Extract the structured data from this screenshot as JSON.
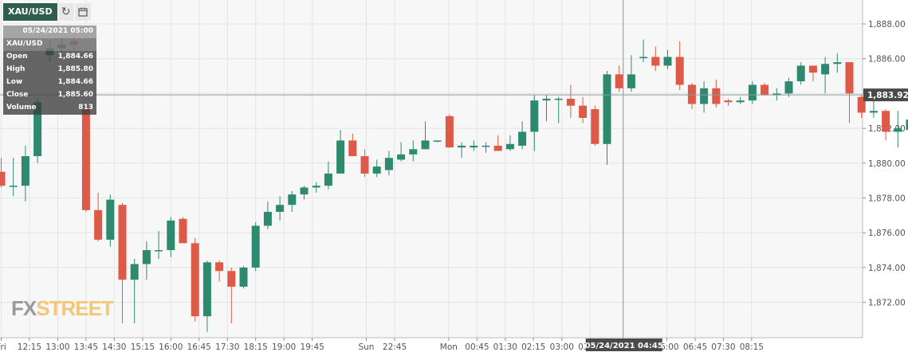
{
  "toolbar": {
    "symbol": "XAU/USD"
  },
  "info_panel": {
    "date": "05/24/2021 05:00",
    "symbol": "XAU/USD",
    "rows": [
      {
        "label": "Open",
        "value": "1,884.66"
      },
      {
        "label": "High",
        "value": "1,885.80"
      },
      {
        "label": "Low",
        "value": "1,884.66"
      },
      {
        "label": "Close",
        "value": "1,885.60"
      },
      {
        "label": "Volume",
        "value": "813"
      }
    ]
  },
  "logo": {
    "part1": "FX",
    "part2": "STREET"
  },
  "crosshair": {
    "price_label": "1,883.92",
    "time_label": "05/24/2021 04:45",
    "price": 1883.92
  },
  "colors": {
    "up": "#2e8a6e",
    "down": "#dd5a48",
    "background": "#f7f7f7",
    "grid": "#e4e4e4"
  },
  "chart_data": {
    "type": "candlestick",
    "ylim": [
      1870.2,
      1889.6
    ],
    "y_ticks": [
      "1,872.00",
      "1,874.00",
      "1,876.00",
      "1,878.00",
      "1,880.00",
      "1,882.00",
      "1,884.00",
      "1,886.00",
      "1,888.00"
    ],
    "y_tick_values": [
      1872,
      1874,
      1876,
      1878,
      1880,
      1882,
      1884,
      1886,
      1888
    ],
    "x_labels": [
      "Fri",
      "12:15",
      "13:00",
      "13:45",
      "14:30",
      "15:15",
      "16:00",
      "16:45",
      "17:30",
      "18:15",
      "19:00",
      "19:45",
      "Sun",
      "22:45",
      "Mon",
      "00:45",
      "01:30",
      "02:15",
      "03:00",
      "03:45",
      "04:45",
      "06:00",
      "06:45",
      "07:30",
      "08:15"
    ],
    "x_label_slots": [
      0,
      2.33,
      4.67,
      7.0,
      9.33,
      11.67,
      14.0,
      16.33,
      18.67,
      21.0,
      23.33,
      25.67,
      30.13,
      32.47,
      36.93,
      39.27,
      41.6,
      43.93,
      46.27,
      48.6,
      51.33,
      54.93,
      57.27,
      59.6,
      61.93
    ],
    "crosshair_slot": 51.33,
    "candles": [
      {
        "o": 1879.5,
        "h": 1880.3,
        "l": 1878.6,
        "c": 1878.7
      },
      {
        "o": 1878.7,
        "h": 1880.3,
        "l": 1878.1,
        "c": 1878.7
      },
      {
        "o": 1878.7,
        "h": 1881.0,
        "l": 1877.8,
        "c": 1880.4
      },
      {
        "o": 1880.4,
        "h": 1883.7,
        "l": 1880.0,
        "c": 1883.5
      },
      {
        "o": 1886.2,
        "h": 1887.0,
        "l": 1885.8,
        "c": 1886.6
      },
      {
        "o": 1886.6,
        "h": 1887.2,
        "l": 1886.4,
        "c": 1886.8
      },
      {
        "o": 1887.0,
        "h": 1887.4,
        "l": 1886.5,
        "c": 1886.8
      },
      {
        "o": 1883.2,
        "h": 1883.4,
        "l": 1877.2,
        "c": 1877.3
      },
      {
        "o": 1877.3,
        "h": 1878.3,
        "l": 1875.5,
        "c": 1875.6
      },
      {
        "o": 1875.6,
        "h": 1878.2,
        "l": 1875.2,
        "c": 1877.9
      },
      {
        "o": 1877.6,
        "h": 1877.7,
        "l": 1870.8,
        "c": 1873.3
      },
      {
        "o": 1873.3,
        "h": 1874.5,
        "l": 1870.8,
        "c": 1874.2
      },
      {
        "o": 1874.2,
        "h": 1875.5,
        "l": 1873.3,
        "c": 1875.0
      },
      {
        "o": 1875.0,
        "h": 1876.1,
        "l": 1874.5,
        "c": 1875.0
      },
      {
        "o": 1875.0,
        "h": 1876.9,
        "l": 1874.6,
        "c": 1876.7
      },
      {
        "o": 1876.8,
        "h": 1876.9,
        "l": 1875.4,
        "c": 1875.4
      },
      {
        "o": 1875.4,
        "h": 1875.7,
        "l": 1870.9,
        "c": 1871.2
      },
      {
        "o": 1871.2,
        "h": 1874.4,
        "l": 1870.3,
        "c": 1874.3
      },
      {
        "o": 1874.3,
        "h": 1874.4,
        "l": 1873.2,
        "c": 1873.8
      },
      {
        "o": 1873.8,
        "h": 1874.0,
        "l": 1870.8,
        "c": 1872.9
      },
      {
        "o": 1872.9,
        "h": 1874.1,
        "l": 1872.8,
        "c": 1874.0
      },
      {
        "o": 1874.0,
        "h": 1876.6,
        "l": 1873.8,
        "c": 1876.4
      },
      {
        "o": 1876.4,
        "h": 1877.8,
        "l": 1876.2,
        "c": 1877.2
      },
      {
        "o": 1877.2,
        "h": 1878.1,
        "l": 1876.7,
        "c": 1877.6
      },
      {
        "o": 1877.6,
        "h": 1878.4,
        "l": 1877.2,
        "c": 1878.2
      },
      {
        "o": 1878.2,
        "h": 1878.7,
        "l": 1877.9,
        "c": 1878.6
      },
      {
        "o": 1878.6,
        "h": 1878.9,
        "l": 1878.3,
        "c": 1878.7
      },
      {
        "o": 1878.7,
        "h": 1880.1,
        "l": 1878.5,
        "c": 1879.4
      },
      {
        "o": 1879.4,
        "h": 1881.9,
        "l": 1879.4,
        "c": 1881.3
      },
      {
        "o": 1881.3,
        "h": 1881.7,
        "l": 1880.4,
        "c": 1880.4
      },
      {
        "o": 1880.4,
        "h": 1880.8,
        "l": 1879.2,
        "c": 1879.4
      },
      {
        "o": 1879.4,
        "h": 1880.2,
        "l": 1879.2,
        "c": 1879.8
      },
      {
        "o": 1879.6,
        "h": 1880.7,
        "l": 1879.3,
        "c": 1880.3
      },
      {
        "o": 1880.2,
        "h": 1881.2,
        "l": 1880.1,
        "c": 1880.5
      },
      {
        "o": 1880.5,
        "h": 1881.3,
        "l": 1880.1,
        "c": 1880.8
      },
      {
        "o": 1880.8,
        "h": 1882.4,
        "l": 1880.8,
        "c": 1881.3
      },
      {
        "o": 1881.3,
        "h": 1881.3,
        "l": 1881.2,
        "c": 1881.3
      },
      {
        "o": 1882.7,
        "h": 1882.8,
        "l": 1880.9,
        "c": 1880.9
      },
      {
        "o": 1880.9,
        "h": 1881.2,
        "l": 1880.3,
        "c": 1881.0
      },
      {
        "o": 1880.9,
        "h": 1881.3,
        "l": 1880.7,
        "c": 1881.0
      },
      {
        "o": 1881.0,
        "h": 1881.2,
        "l": 1880.6,
        "c": 1881.0
      },
      {
        "o": 1881.0,
        "h": 1881.6,
        "l": 1880.7,
        "c": 1880.7
      },
      {
        "o": 1880.8,
        "h": 1881.6,
        "l": 1880.7,
        "c": 1881.1
      },
      {
        "o": 1881.0,
        "h": 1882.4,
        "l": 1880.8,
        "c": 1881.8
      },
      {
        "o": 1881.8,
        "h": 1883.9,
        "l": 1880.7,
        "c": 1883.6
      },
      {
        "o": 1883.6,
        "h": 1883.9,
        "l": 1882.4,
        "c": 1883.7
      },
      {
        "o": 1883.7,
        "h": 1883.8,
        "l": 1882.3,
        "c": 1883.7
      },
      {
        "o": 1883.7,
        "h": 1884.5,
        "l": 1882.6,
        "c": 1883.3
      },
      {
        "o": 1883.3,
        "h": 1883.8,
        "l": 1882.3,
        "c": 1882.6
      },
      {
        "o": 1883.1,
        "h": 1883.3,
        "l": 1881.0,
        "c": 1881.1
      },
      {
        "o": 1881.1,
        "h": 1885.3,
        "l": 1879.9,
        "c": 1885.1
      },
      {
        "o": 1885.1,
        "h": 1885.6,
        "l": 1884.1,
        "c": 1884.3
      },
      {
        "o": 1884.3,
        "h": 1886.2,
        "l": 1884.1,
        "c": 1885.1
      },
      {
        "o": 1886.1,
        "h": 1887.1,
        "l": 1885.8,
        "c": 1886.1
      },
      {
        "o": 1886.1,
        "h": 1886.7,
        "l": 1885.3,
        "c": 1885.6
      },
      {
        "o": 1885.6,
        "h": 1886.5,
        "l": 1885.4,
        "c": 1886.1
      },
      {
        "o": 1886.1,
        "h": 1887.0,
        "l": 1884.2,
        "c": 1884.5
      },
      {
        "o": 1884.5,
        "h": 1884.6,
        "l": 1883.1,
        "c": 1883.4
      },
      {
        "o": 1883.4,
        "h": 1884.7,
        "l": 1882.9,
        "c": 1884.3
      },
      {
        "o": 1884.3,
        "h": 1884.8,
        "l": 1883.2,
        "c": 1883.4
      },
      {
        "o": 1883.6,
        "h": 1883.7,
        "l": 1883.3,
        "c": 1883.5
      },
      {
        "o": 1883.5,
        "h": 1883.8,
        "l": 1883.4,
        "c": 1883.6
      },
      {
        "o": 1883.6,
        "h": 1884.7,
        "l": 1883.4,
        "c": 1884.5
      },
      {
        "o": 1884.5,
        "h": 1884.6,
        "l": 1883.9,
        "c": 1883.9
      },
      {
        "o": 1883.9,
        "h": 1884.3,
        "l": 1883.6,
        "c": 1884.0
      },
      {
        "o": 1884.0,
        "h": 1884.9,
        "l": 1883.8,
        "c": 1884.7
      },
      {
        "o": 1884.7,
        "h": 1885.8,
        "l": 1884.5,
        "c": 1885.6
      },
      {
        "o": 1885.6,
        "h": 1885.6,
        "l": 1884.7,
        "c": 1885.2
      },
      {
        "o": 1885.1,
        "h": 1886.1,
        "l": 1884.0,
        "c": 1885.7
      },
      {
        "o": 1885.7,
        "h": 1886.3,
        "l": 1885.2,
        "c": 1885.8
      },
      {
        "o": 1885.8,
        "h": 1885.8,
        "l": 1882.3,
        "c": 1884.0
      },
      {
        "o": 1883.8,
        "h": 1883.9,
        "l": 1882.6,
        "c": 1882.9
      },
      {
        "o": 1882.9,
        "h": 1884.2,
        "l": 1882.6,
        "c": 1883.0
      },
      {
        "o": 1883.0,
        "h": 1883.1,
        "l": 1881.3,
        "c": 1881.8
      },
      {
        "o": 1881.8,
        "h": 1883.0,
        "l": 1880.9,
        "c": 1882.0
      },
      {
        "o": 1881.9,
        "h": 1882.9,
        "l": 1881.7,
        "c": 1882.5
      },
      {
        "o": 1882.5,
        "h": 1883.0,
        "l": 1881.7,
        "c": 1881.9
      },
      {
        "o": 1882.1,
        "h": 1882.9,
        "l": 1881.6,
        "c": 1881.9
      },
      {
        "o": 1881.9,
        "h": 1882.7,
        "l": 1881.8,
        "c": 1882.5
      },
      {
        "o": 1882.5,
        "h": 1882.7,
        "l": 1881.8,
        "c": 1881.9
      }
    ]
  }
}
